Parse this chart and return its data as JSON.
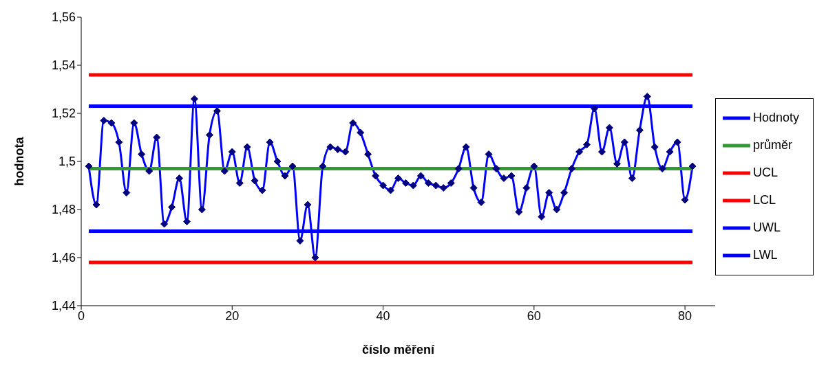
{
  "chart_data": {
    "type": "line",
    "xlabel": "číslo měření",
    "ylabel": "hodnota",
    "xlim": [
      0,
      84
    ],
    "xticks": [
      0,
      20,
      40,
      60,
      80
    ],
    "ylim": [
      1.44,
      1.56
    ],
    "yticks": [
      {
        "value": 1.44,
        "label": "1,44"
      },
      {
        "value": 1.46,
        "label": "1,46"
      },
      {
        "value": 1.48,
        "label": "1,48"
      },
      {
        "value": 1.5,
        "label": "1,5"
      },
      {
        "value": 1.52,
        "label": "1,52"
      },
      {
        "value": 1.54,
        "label": "1,54"
      },
      {
        "value": 1.56,
        "label": "1,56"
      }
    ],
    "grid": false,
    "legend": "right",
    "line_style": "solid",
    "x": [
      1,
      2,
      3,
      4,
      5,
      6,
      7,
      8,
      9,
      10,
      11,
      12,
      13,
      14,
      15,
      16,
      17,
      18,
      19,
      20,
      21,
      22,
      23,
      24,
      25,
      26,
      27,
      28,
      29,
      30,
      31,
      32,
      33,
      34,
      35,
      36,
      37,
      38,
      39,
      40,
      41,
      42,
      43,
      44,
      45,
      46,
      47,
      48,
      49,
      50,
      51,
      52,
      53,
      54,
      55,
      56,
      57,
      58,
      59,
      60,
      61,
      62,
      63,
      64,
      65,
      66,
      67,
      68,
      69,
      70,
      71,
      72,
      73,
      74,
      75,
      76,
      77,
      78,
      79,
      80,
      81
    ],
    "series": [
      {
        "name": "Hodnoty",
        "color": "#0000ff",
        "marker": "diamond",
        "values": [
          1.498,
          1.482,
          1.517,
          1.516,
          1.508,
          1.487,
          1.516,
          1.503,
          1.496,
          1.51,
          1.474,
          1.481,
          1.493,
          1.475,
          1.526,
          1.48,
          1.511,
          1.521,
          1.496,
          1.504,
          1.491,
          1.506,
          1.492,
          1.488,
          1.508,
          1.5,
          1.494,
          1.498,
          1.467,
          1.482,
          1.46,
          1.498,
          1.506,
          1.505,
          1.504,
          1.516,
          1.512,
          1.503,
          1.494,
          1.49,
          1.488,
          1.493,
          1.491,
          1.49,
          1.494,
          1.491,
          1.49,
          1.489,
          1.491,
          1.497,
          1.506,
          1.489,
          1.483,
          1.503,
          1.497,
          1.493,
          1.494,
          1.479,
          1.489,
          1.498,
          1.477,
          1.487,
          1.48,
          1.487,
          1.497,
          1.504,
          1.507,
          1.522,
          1.504,
          1.514,
          1.499,
          1.508,
          1.493,
          1.513,
          1.527,
          1.506,
          1.497,
          1.504,
          1.508,
          1.484,
          1.498
        ]
      },
      {
        "name": "průměr",
        "color": "#339933",
        "marker": "none",
        "values": [
          1.497,
          1.497,
          1.497,
          1.497,
          1.497,
          1.497,
          1.497,
          1.497,
          1.497,
          1.497,
          1.497,
          1.497,
          1.497,
          1.497,
          1.497,
          1.497,
          1.497,
          1.497,
          1.497,
          1.497,
          1.497,
          1.497,
          1.497,
          1.497,
          1.497,
          1.497,
          1.497,
          1.497,
          1.497,
          1.497,
          1.497,
          1.497,
          1.497,
          1.497,
          1.497,
          1.497,
          1.497,
          1.497,
          1.497,
          1.497,
          1.497,
          1.497,
          1.497,
          1.497,
          1.497,
          1.497,
          1.497,
          1.497,
          1.497,
          1.497,
          1.497,
          1.497,
          1.497,
          1.497,
          1.497,
          1.497,
          1.497,
          1.497,
          1.497,
          1.497,
          1.497,
          1.497,
          1.497,
          1.497,
          1.497,
          1.497,
          1.497,
          1.497,
          1.497,
          1.497,
          1.497,
          1.497,
          1.497,
          1.497,
          1.497,
          1.497,
          1.497,
          1.497,
          1.497,
          1.497,
          1.497
        ]
      },
      {
        "name": "UCL",
        "color": "#ff0000",
        "marker": "none",
        "values": [
          1.536,
          1.536,
          1.536,
          1.536,
          1.536,
          1.536,
          1.536,
          1.536,
          1.536,
          1.536,
          1.536,
          1.536,
          1.536,
          1.536,
          1.536,
          1.536,
          1.536,
          1.536,
          1.536,
          1.536,
          1.536,
          1.536,
          1.536,
          1.536,
          1.536,
          1.536,
          1.536,
          1.536,
          1.536,
          1.536,
          1.536,
          1.536,
          1.536,
          1.536,
          1.536,
          1.536,
          1.536,
          1.536,
          1.536,
          1.536,
          1.536,
          1.536,
          1.536,
          1.536,
          1.536,
          1.536,
          1.536,
          1.536,
          1.536,
          1.536,
          1.536,
          1.536,
          1.536,
          1.536,
          1.536,
          1.536,
          1.536,
          1.536,
          1.536,
          1.536,
          1.536,
          1.536,
          1.536,
          1.536,
          1.536,
          1.536,
          1.536,
          1.536,
          1.536,
          1.536,
          1.536,
          1.536,
          1.536,
          1.536,
          1.536,
          1.536,
          1.536,
          1.536,
          1.536,
          1.536,
          1.536
        ]
      },
      {
        "name": "LCL",
        "color": "#ff0000",
        "marker": "none",
        "values": [
          1.458,
          1.458,
          1.458,
          1.458,
          1.458,
          1.458,
          1.458,
          1.458,
          1.458,
          1.458,
          1.458,
          1.458,
          1.458,
          1.458,
          1.458,
          1.458,
          1.458,
          1.458,
          1.458,
          1.458,
          1.458,
          1.458,
          1.458,
          1.458,
          1.458,
          1.458,
          1.458,
          1.458,
          1.458,
          1.458,
          1.458,
          1.458,
          1.458,
          1.458,
          1.458,
          1.458,
          1.458,
          1.458,
          1.458,
          1.458,
          1.458,
          1.458,
          1.458,
          1.458,
          1.458,
          1.458,
          1.458,
          1.458,
          1.458,
          1.458,
          1.458,
          1.458,
          1.458,
          1.458,
          1.458,
          1.458,
          1.458,
          1.458,
          1.458,
          1.458,
          1.458,
          1.458,
          1.458,
          1.458,
          1.458,
          1.458,
          1.458,
          1.458,
          1.458,
          1.458,
          1.458,
          1.458,
          1.458,
          1.458,
          1.458,
          1.458,
          1.458,
          1.458,
          1.458,
          1.458,
          1.458
        ]
      },
      {
        "name": "UWL",
        "color": "#0000ff",
        "marker": "none",
        "values": [
          1.523,
          1.523,
          1.523,
          1.523,
          1.523,
          1.523,
          1.523,
          1.523,
          1.523,
          1.523,
          1.523,
          1.523,
          1.523,
          1.523,
          1.523,
          1.523,
          1.523,
          1.523,
          1.523,
          1.523,
          1.523,
          1.523,
          1.523,
          1.523,
          1.523,
          1.523,
          1.523,
          1.523,
          1.523,
          1.523,
          1.523,
          1.523,
          1.523,
          1.523,
          1.523,
          1.523,
          1.523,
          1.523,
          1.523,
          1.523,
          1.523,
          1.523,
          1.523,
          1.523,
          1.523,
          1.523,
          1.523,
          1.523,
          1.523,
          1.523,
          1.523,
          1.523,
          1.523,
          1.523,
          1.523,
          1.523,
          1.523,
          1.523,
          1.523,
          1.523,
          1.523,
          1.523,
          1.523,
          1.523,
          1.523,
          1.523,
          1.523,
          1.523,
          1.523,
          1.523,
          1.523,
          1.523,
          1.523,
          1.523,
          1.523,
          1.523,
          1.523,
          1.523,
          1.523,
          1.523,
          1.523
        ]
      },
      {
        "name": "LWL",
        "color": "#0000ff",
        "marker": "none",
        "values": [
          1.471,
          1.471,
          1.471,
          1.471,
          1.471,
          1.471,
          1.471,
          1.471,
          1.471,
          1.471,
          1.471,
          1.471,
          1.471,
          1.471,
          1.471,
          1.471,
          1.471,
          1.471,
          1.471,
          1.471,
          1.471,
          1.471,
          1.471,
          1.471,
          1.471,
          1.471,
          1.471,
          1.471,
          1.471,
          1.471,
          1.471,
          1.471,
          1.471,
          1.471,
          1.471,
          1.471,
          1.471,
          1.471,
          1.471,
          1.471,
          1.471,
          1.471,
          1.471,
          1.471,
          1.471,
          1.471,
          1.471,
          1.471,
          1.471,
          1.471,
          1.471,
          1.471,
          1.471,
          1.471,
          1.471,
          1.471,
          1.471,
          1.471,
          1.471,
          1.471,
          1.471,
          1.471,
          1.471,
          1.471,
          1.471,
          1.471,
          1.471,
          1.471,
          1.471,
          1.471,
          1.471,
          1.471,
          1.471,
          1.471,
          1.471,
          1.471,
          1.471,
          1.471,
          1.471,
          1.471,
          1.471
        ]
      }
    ]
  }
}
